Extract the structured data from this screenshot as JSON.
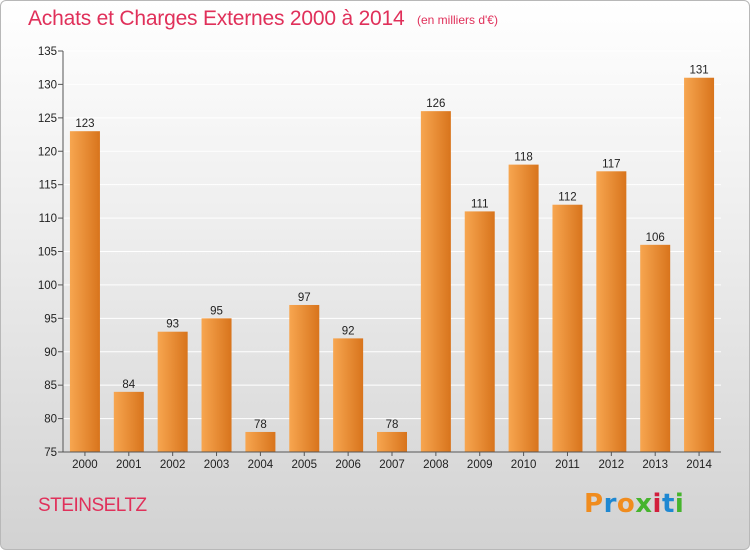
{
  "title": "Achats et Charges Externes 2000 à 2014",
  "subtitle": "(en milliers d'€)",
  "location": "STEINSELTZ",
  "logo": {
    "text": "Proxiti",
    "letters": [
      "P",
      "r",
      "o",
      "x",
      "i",
      "t",
      "i"
    ],
    "colors": [
      "#f08c1e",
      "#1e88d2",
      "#f08c1e",
      "#46b42d",
      "#d21e3c",
      "#1e88d2",
      "#46b42d"
    ]
  },
  "colors": {
    "bar_light": "#f7a650",
    "bar_dark": "#d8741c",
    "title": "#e0305a",
    "grid": "#ffffff"
  },
  "chart_data": {
    "type": "bar",
    "categories": [
      "2000",
      "2001",
      "2002",
      "2003",
      "2004",
      "2005",
      "2006",
      "2007",
      "2008",
      "2009",
      "2010",
      "2011",
      "2012",
      "2013",
      "2014"
    ],
    "values": [
      123,
      84,
      93,
      95,
      78,
      97,
      92,
      78,
      126,
      111,
      118,
      112,
      117,
      106,
      131
    ],
    "ylim": [
      75,
      135
    ],
    "yticks": [
      75,
      80,
      85,
      90,
      95,
      100,
      105,
      110,
      115,
      120,
      125,
      130,
      135
    ],
    "grid": true,
    "data_labels": true
  }
}
